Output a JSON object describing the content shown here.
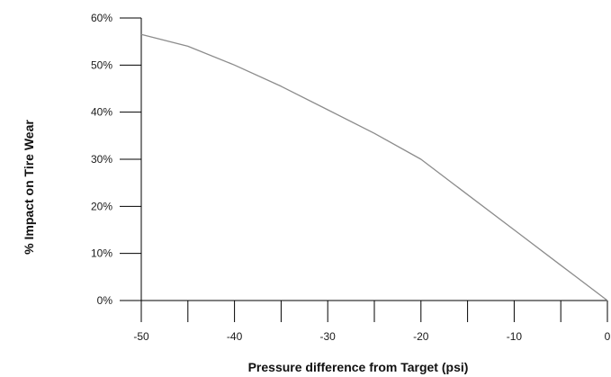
{
  "chart_data": {
    "type": "line",
    "title": "",
    "xlabel": "Pressure difference from Target (psi)",
    "ylabel": "% Impact on Tire Wear",
    "xlim": [
      -50,
      0
    ],
    "ylim": [
      0,
      60
    ],
    "x_ticks": [
      -50,
      -40,
      -30,
      -20,
      -10,
      0
    ],
    "x_tick_labels": [
      "-50",
      "-40",
      "-30",
      "-20",
      "-10",
      "0"
    ],
    "y_ticks": [
      0,
      10,
      20,
      30,
      40,
      50,
      60
    ],
    "y_tick_labels": [
      "0%",
      "10%",
      "20%",
      "30%",
      "40%",
      "50%",
      "60%"
    ],
    "grid": false,
    "line_color": "#8c8c8c",
    "axis_color": "#000000",
    "series": [
      {
        "x": [
          -50,
          -45,
          -40,
          -35,
          -30,
          -25,
          -20,
          -15,
          -10,
          -5,
          0
        ],
        "values": [
          56.5,
          54,
          50,
          45.5,
          40.5,
          35.5,
          30,
          22.5,
          15,
          7.5,
          0
        ]
      }
    ]
  }
}
